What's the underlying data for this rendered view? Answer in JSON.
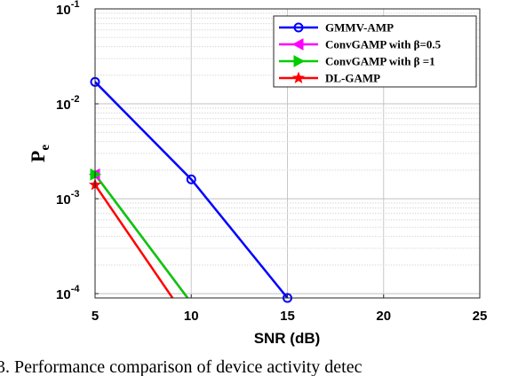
{
  "chart_data": {
    "type": "line",
    "xlabel": "SNR (dB)",
    "ylabel": "P",
    "ylabel_sub": "e",
    "x_ticks": [
      "5",
      "10",
      "15",
      "20",
      "25"
    ],
    "y_ticks": [
      {
        "base": "10",
        "exp": "-1"
      },
      {
        "base": "10",
        "exp": "-2"
      },
      {
        "base": "10",
        "exp": "-3"
      },
      {
        "base": "10",
        "exp": "-4"
      }
    ],
    "xlim": [
      5,
      25
    ],
    "ylim": [
      9e-05,
      0.1
    ],
    "y_scale": "log",
    "grid": true,
    "legend_position": "top-right",
    "series": [
      {
        "name": "GMMV-AMP",
        "color": "#0000ff",
        "marker": "circle",
        "x": [
          5,
          10,
          15
        ],
        "y": [
          0.017,
          0.0016,
          9e-05
        ]
      },
      {
        "name": "ConvGAMP with β=0.5",
        "color": "#ff00ff",
        "marker": "triangle-left",
        "x": [
          5,
          10
        ],
        "y": [
          0.0018,
          8e-05
        ]
      },
      {
        "name": "ConvGAMP with β =1",
        "color": "#00cc00",
        "marker": "triangle-right",
        "x": [
          5,
          10
        ],
        "y": [
          0.0018,
          8e-05
        ]
      },
      {
        "name": "DL-GAMP",
        "color": "#ff0000",
        "marker": "star",
        "x": [
          5,
          9.2
        ],
        "y": [
          0.0014,
          8e-05
        ]
      }
    ],
    "caption": "3.  Performance comparison of device activity detec"
  }
}
